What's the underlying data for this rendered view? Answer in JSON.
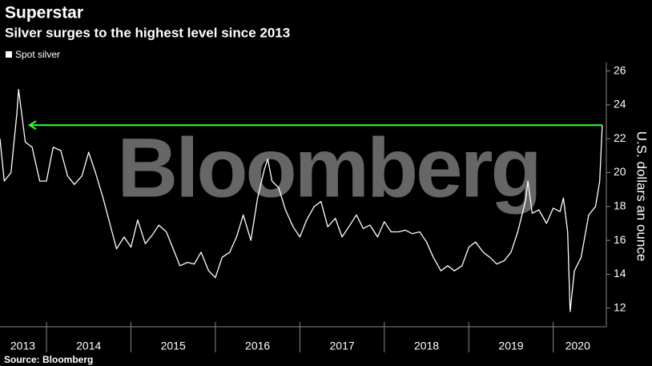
{
  "chart_data": {
    "type": "line",
    "title": "Superstar",
    "subtitle": "Silver surges to the highest level since 2013",
    "y_axis_label": "U.S. dollars an ounce",
    "source": "Source: Bloomberg",
    "watermark": "Bloomberg",
    "x": [
      2013.45,
      2013.5,
      2013.58,
      2013.65,
      2013.67,
      2013.75,
      2013.83,
      2013.92,
      2014.0,
      2014.08,
      2014.17,
      2014.25,
      2014.33,
      2014.42,
      2014.5,
      2014.58,
      2014.67,
      2014.75,
      2014.83,
      2014.92,
      2015.0,
      2015.08,
      2015.17,
      2015.25,
      2015.33,
      2015.42,
      2015.5,
      2015.58,
      2015.67,
      2015.75,
      2015.83,
      2015.92,
      2016.0,
      2016.08,
      2016.17,
      2016.25,
      2016.33,
      2016.42,
      2016.5,
      2016.58,
      2016.62,
      2016.67,
      2016.75,
      2016.83,
      2016.92,
      2017.0,
      2017.08,
      2017.17,
      2017.25,
      2017.33,
      2017.42,
      2017.5,
      2017.58,
      2017.67,
      2017.75,
      2017.83,
      2017.92,
      2018.0,
      2018.08,
      2018.17,
      2018.25,
      2018.33,
      2018.42,
      2018.5,
      2018.58,
      2018.67,
      2018.75,
      2018.83,
      2018.92,
      2019.0,
      2019.08,
      2019.17,
      2019.25,
      2019.33,
      2019.42,
      2019.5,
      2019.58,
      2019.67,
      2019.7,
      2019.75,
      2019.83,
      2019.92,
      2020.0,
      2020.08,
      2020.12,
      2020.17,
      2020.2,
      2020.25,
      2020.33,
      2020.42,
      2020.5,
      2020.55,
      2020.58
    ],
    "series": [
      {
        "name": "Spot silver",
        "color": "#ffffff",
        "values": [
          22,
          19.5,
          20,
          23.5,
          24.9,
          21.8,
          21.5,
          19.5,
          19.5,
          21.5,
          21.3,
          19.8,
          19.3,
          19.8,
          21.2,
          20,
          18.5,
          17,
          15.5,
          16.2,
          15.6,
          17.2,
          15.8,
          16.3,
          16.9,
          16.5,
          15.5,
          14.5,
          14.7,
          14.6,
          15.3,
          14.2,
          13.8,
          15,
          15.3,
          16.2,
          17.5,
          16,
          18.5,
          20.2,
          20.8,
          19.5,
          19.1,
          17.8,
          16.8,
          16.2,
          17.2,
          18,
          18.3,
          16.8,
          17.3,
          16.2,
          16.8,
          17.5,
          16.7,
          16.9,
          16.2,
          17.1,
          16.5,
          16.5,
          16.6,
          16.4,
          16.5,
          15.9,
          15,
          14.2,
          14.5,
          14.2,
          14.5,
          15.6,
          15.9,
          15.3,
          15,
          14.6,
          14.8,
          15.3,
          16.5,
          18.3,
          19.5,
          17.6,
          17.8,
          17,
          17.9,
          17.7,
          18.5,
          16.5,
          11.8,
          14.2,
          15,
          17.5,
          18,
          19.5,
          22.8
        ]
      }
    ],
    "annotation_arrow": {
      "y": 22.8,
      "x_start": 2013.8,
      "x_end": 2020.58,
      "color": "#33ff33"
    },
    "xlim": [
      2013.45,
      2020.6
    ],
    "xticks": [
      {
        "value": 2013.72,
        "label": "2013"
      },
      {
        "value": 2014.5,
        "label": "2014"
      },
      {
        "value": 2015.5,
        "label": "2015"
      },
      {
        "value": 2016.5,
        "label": "2016"
      },
      {
        "value": 2017.5,
        "label": "2017"
      },
      {
        "value": 2018.5,
        "label": "2018"
      },
      {
        "value": 2019.5,
        "label": "2019"
      },
      {
        "value": 2020.29,
        "label": "2020"
      }
    ],
    "year_separators": [
      2014,
      2015,
      2016,
      2017,
      2018,
      2019,
      2020
    ],
    "ylim": [
      10.9,
      26.5
    ],
    "yticks": [
      12,
      14,
      16,
      18,
      20,
      22,
      24,
      26
    ],
    "grid": false
  }
}
